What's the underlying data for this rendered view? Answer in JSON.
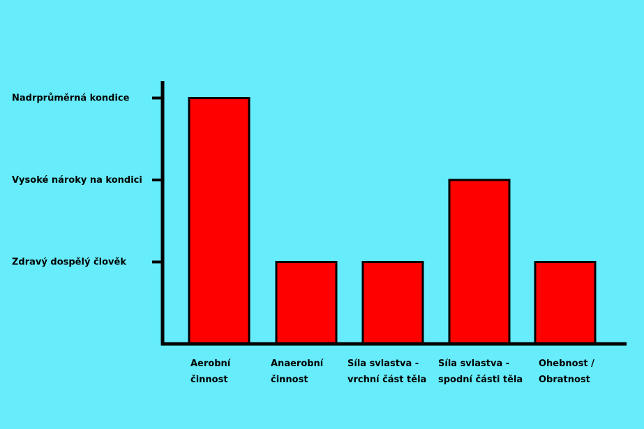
{
  "chart_data": {
    "type": "bar",
    "categories": [
      [
        "Aerobní",
        "činnost"
      ],
      [
        "Anaerobní",
        "činnost"
      ],
      [
        "Síla svlastva -",
        "vrchní část těla"
      ],
      [
        "Síla svlastva -",
        "spodní části těla"
      ],
      [
        "Ohebnost /",
        "Obratnost"
      ]
    ],
    "values": [
      3,
      1,
      1,
      2,
      1
    ],
    "y_ticks": [
      {
        "value": 1,
        "label": "Zdravý dospělý člověk"
      },
      {
        "value": 2,
        "label": "Vysoké nároky na kondici"
      },
      {
        "value": 3,
        "label": "Nadrprůměrná kondice"
      }
    ],
    "ylim": [
      0,
      3.3
    ],
    "title": "",
    "xlabel": "",
    "ylabel": "",
    "grid": false,
    "colors": {
      "bar": "#ff0000",
      "axis": "#000000",
      "background": "#66ecfa"
    }
  }
}
